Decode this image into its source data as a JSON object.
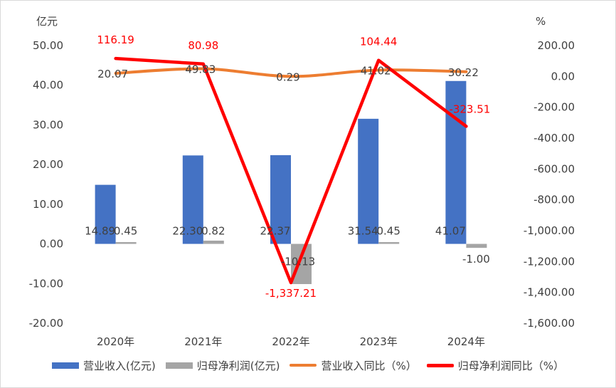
{
  "chart_data": {
    "type": "bar",
    "categories": [
      "2020年",
      "2021年",
      "2022年",
      "2023年",
      "2024年"
    ],
    "left_axis": {
      "unit": "亿元",
      "ylim": [
        -20,
        50
      ],
      "ticks": [
        "-20.00",
        "-10.00",
        "0.00",
        "10.00",
        "20.00",
        "30.00",
        "40.00",
        "50.00"
      ],
      "tick_values": [
        -20,
        -10,
        0,
        10,
        20,
        30,
        40,
        50
      ]
    },
    "right_axis": {
      "unit": "%",
      "ylim": [
        -1600,
        200
      ],
      "ticks": [
        "-1,600.00",
        "-1,400.00",
        "-1,200.00",
        "-1,000.00",
        "-800.00",
        "-600.00",
        "-400.00",
        "-200.00",
        "0.00",
        "200.00"
      ],
      "tick_values": [
        -1600,
        -1400,
        -1200,
        -1000,
        -800,
        -600,
        -400,
        -200,
        0,
        200
      ]
    },
    "series": [
      {
        "name": "营业收入(亿元)",
        "kind": "bar",
        "axis": "left",
        "color": "#4472C4",
        "values": [
          14.89,
          22.3,
          22.37,
          31.54,
          41.07
        ],
        "labels": [
          "14.89",
          "22.30",
          "22.37",
          "31.54",
          "41.07"
        ]
      },
      {
        "name": "归母净利润(亿元)",
        "kind": "bar",
        "axis": "left",
        "color": "#A5A5A5",
        "values": [
          0.45,
          0.82,
          -10.13,
          0.45,
          -1.0
        ],
        "labels": [
          "0.45",
          "0.82",
          "-10.13",
          "0.45",
          "-1.00"
        ]
      },
      {
        "name": "营业收入同比（%）",
        "kind": "line",
        "axis": "right",
        "color": "#ED7D31",
        "values": [
          20.07,
          49.83,
          0.29,
          41.02,
          30.22
        ],
        "labels": [
          "20.07",
          "49.83",
          "0.29",
          "41.02",
          "30.22"
        ]
      },
      {
        "name": "归母净利润同比（%）",
        "kind": "line",
        "axis": "right",
        "color": "#FF0000",
        "values": [
          116.19,
          80.98,
          -1337.21,
          104.44,
          -323.51
        ],
        "labels": [
          "116.19",
          "80.98",
          "-1,337.21",
          "104.44",
          "-323.51"
        ]
      }
    ],
    "grid": false,
    "legend_position": "bottom"
  }
}
